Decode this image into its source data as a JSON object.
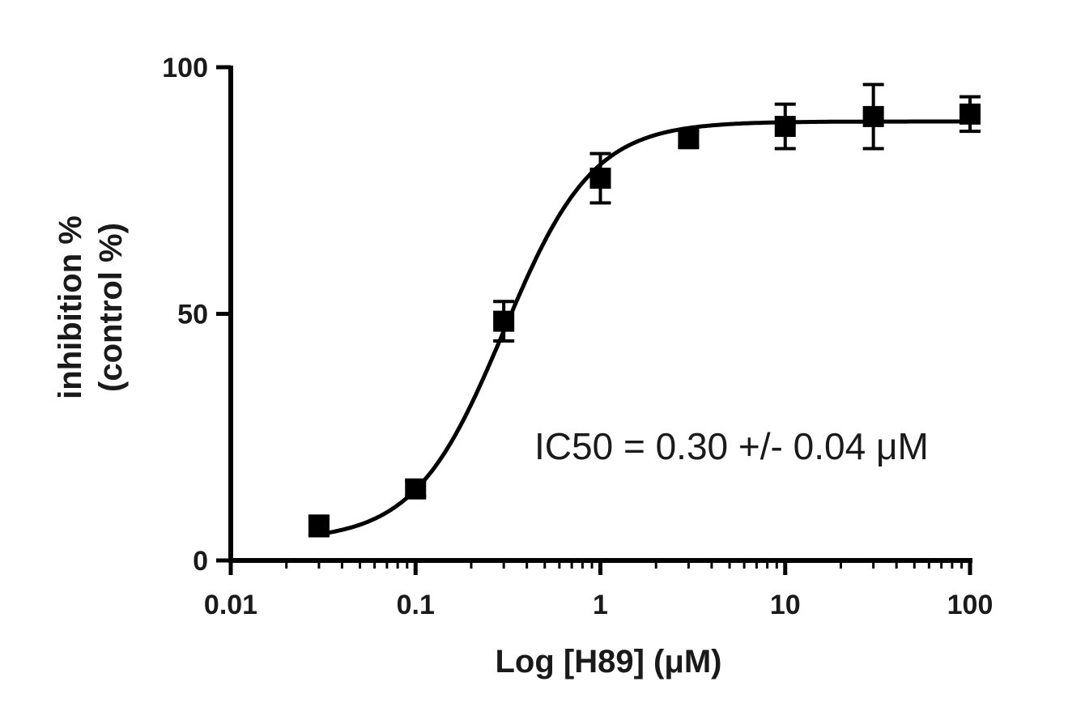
{
  "chart_data": {
    "type": "scatter",
    "xlabel": "Log [H89] (μM)",
    "ylabel": [
      "inhibition %",
      "(control %)"
    ],
    "xscale": "log",
    "xlim": [
      0.01,
      100
    ],
    "ylim": [
      0,
      100
    ],
    "xticks": [
      0.01,
      0.1,
      1,
      10,
      100
    ],
    "xtick_labels": [
      "0.01",
      "0.1",
      "1",
      "10",
      "100"
    ],
    "yticks": [
      0,
      50,
      100
    ],
    "ytick_labels": [
      "0",
      "50",
      "100"
    ],
    "grid": false,
    "annotation": "IC50 = 0.30 +/- 0.04 μM",
    "points": [
      {
        "x": 0.03,
        "y": 7,
        "err": 2
      },
      {
        "x": 0.1,
        "y": 14.5,
        "err": 1.5
      },
      {
        "x": 0.3,
        "y": 48.5,
        "err": 4
      },
      {
        "x": 1,
        "y": 77.5,
        "err": 5
      },
      {
        "x": 3,
        "y": 85.5,
        "err": 1.5
      },
      {
        "x": 10,
        "y": 88,
        "err": 4.5
      },
      {
        "x": 30,
        "y": 90,
        "err": 6.5
      },
      {
        "x": 100,
        "y": 90.5,
        "err": 3.5
      }
    ],
    "fit": {
      "type": "sigmoid",
      "bottom": 4,
      "top": 89,
      "ic50": 0.3,
      "hill": 1.8
    },
    "colors": {
      "line": "#000000",
      "marker": "#000000",
      "text": "#1a1a1a"
    }
  }
}
